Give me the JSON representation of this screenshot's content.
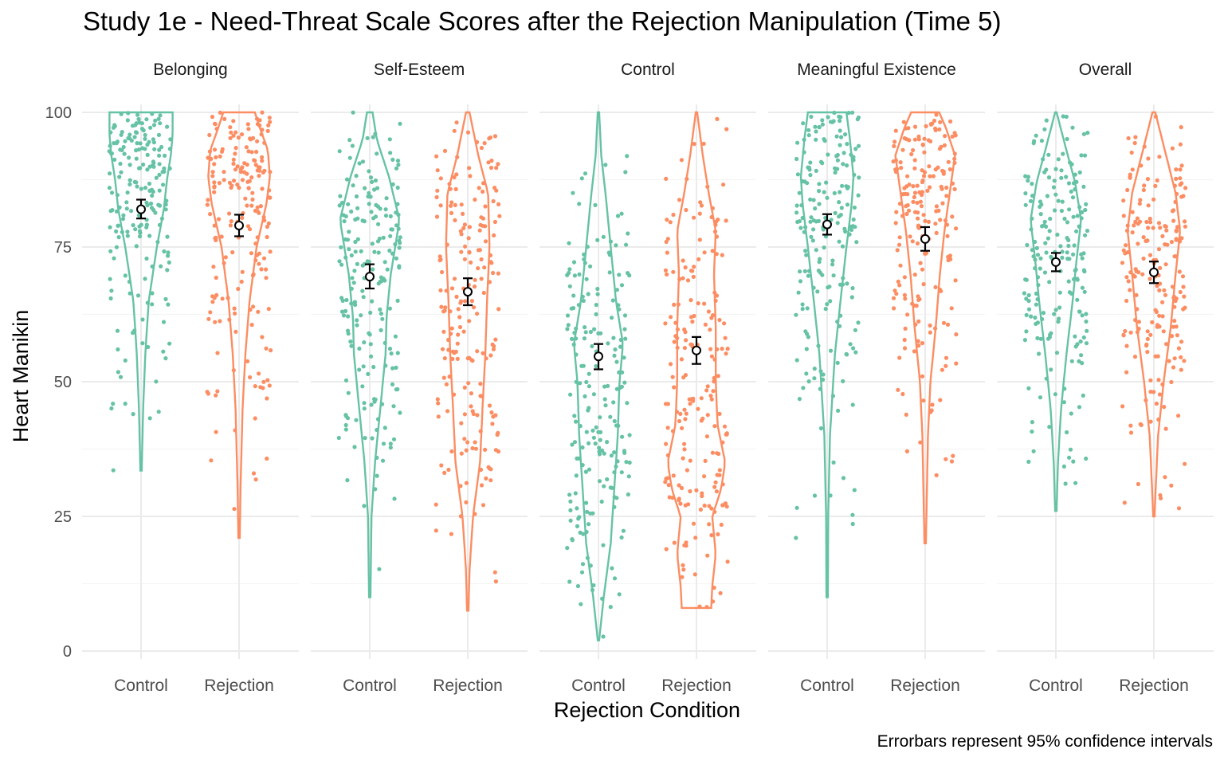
{
  "chart_data": {
    "type": "violin",
    "title": "Study 1e - Need-Threat Scale Scores after the Rejection Manipulation (Time 5)",
    "xlabel": "Rejection Condition",
    "ylabel": "Heart Manikin",
    "caption": "Errorbars represent 95% confidence intervals",
    "ylim": [
      0,
      100
    ],
    "yticks": [
      0,
      25,
      50,
      75,
      100
    ],
    "grid": true,
    "legend": "none",
    "categories": [
      "Control",
      "Rejection"
    ],
    "colors": {
      "Control": "#66c2a5",
      "Rejection": "#fc8d62"
    },
    "facets": [
      {
        "label": "Belonging",
        "groups": [
          {
            "condition": "Control",
            "mean": 82.0,
            "ci": [
              80.3,
              83.8
            ],
            "min": 33.5,
            "max": 100,
            "mode": 93,
            "density": [
              [
                34,
                0.02
              ],
              [
                45,
                0.06
              ],
              [
                55,
                0.12
              ],
              [
                65,
                0.22
              ],
              [
                75,
                0.45
              ],
              [
                82,
                0.65
              ],
              [
                88,
                0.75
              ],
              [
                92,
                0.85
              ],
              [
                96,
                0.9
              ],
              [
                100,
                0.9
              ]
            ]
          },
          {
            "condition": "Rejection",
            "mean": 79.0,
            "ci": [
              77.0,
              81.0
            ],
            "min": 21,
            "max": 100,
            "mode": 88,
            "density": [
              [
                21,
                0.02
              ],
              [
                30,
                0.04
              ],
              [
                45,
                0.1
              ],
              [
                55,
                0.18
              ],
              [
                65,
                0.3
              ],
              [
                75,
                0.5
              ],
              [
                83,
                0.78
              ],
              [
                88,
                0.88
              ],
              [
                93,
                0.82
              ],
              [
                97,
                0.6
              ],
              [
                100,
                0.45
              ]
            ]
          }
        ]
      },
      {
        "label": "Self-Esteem",
        "groups": [
          {
            "condition": "Control",
            "mean": 69.5,
            "ci": [
              67.3,
              71.8
            ],
            "min": 10,
            "max": 100,
            "mode": 80,
            "density": [
              [
                10,
                0.02
              ],
              [
                25,
                0.05
              ],
              [
                35,
                0.15
              ],
              [
                45,
                0.3
              ],
              [
                55,
                0.45
              ],
              [
                62,
                0.48
              ],
              [
                70,
                0.6
              ],
              [
                80,
                0.85
              ],
              [
                88,
                0.55
              ],
              [
                95,
                0.2
              ],
              [
                100,
                0.08
              ]
            ]
          },
          {
            "condition": "Rejection",
            "mean": 66.7,
            "ci": [
              64.2,
              69.2
            ],
            "min": 7.5,
            "max": 100,
            "mode": 82,
            "density": [
              [
                7.5,
                0.02
              ],
              [
                15,
                0.05
              ],
              [
                25,
                0.15
              ],
              [
                35,
                0.35
              ],
              [
                45,
                0.42
              ],
              [
                55,
                0.5
              ],
              [
                65,
                0.55
              ],
              [
                75,
                0.62
              ],
              [
                85,
                0.58
              ],
              [
                92,
                0.3
              ],
              [
                100,
                0.05
              ]
            ]
          }
        ]
      },
      {
        "label": "Control",
        "groups": [
          {
            "condition": "Control",
            "mean": 54.7,
            "ci": [
              52.3,
              57.0
            ],
            "min": 2,
            "max": 100,
            "mode": 55,
            "density": [
              [
                2,
                0.02
              ],
              [
                10,
                0.15
              ],
              [
                20,
                0.35
              ],
              [
                30,
                0.45
              ],
              [
                40,
                0.55
              ],
              [
                50,
                0.6
              ],
              [
                57,
                0.7
              ],
              [
                65,
                0.5
              ],
              [
                75,
                0.35
              ],
              [
                85,
                0.2
              ],
              [
                92,
                0.08
              ],
              [
                100,
                0.02
              ]
            ]
          },
          {
            "condition": "Rejection",
            "mean": 55.8,
            "ci": [
              53.3,
              58.3
            ],
            "min": 8,
            "max": 100,
            "mode": 35,
            "density": [
              [
                8,
                0.42
              ],
              [
                12,
                0.45
              ],
              [
                18,
                0.55
              ],
              [
                25,
                0.45
              ],
              [
                30,
                0.7
              ],
              [
                35,
                0.82
              ],
              [
                42,
                0.6
              ],
              [
                50,
                0.55
              ],
              [
                60,
                0.55
              ],
              [
                70,
                0.5
              ],
              [
                78,
                0.55
              ],
              [
                85,
                0.35
              ],
              [
                92,
                0.18
              ],
              [
                100,
                0.02
              ]
            ]
          }
        ]
      },
      {
        "label": "Meaningful Existence",
        "groups": [
          {
            "condition": "Control",
            "mean": 79.2,
            "ci": [
              77.3,
              81.1
            ],
            "min": 10,
            "max": 100,
            "mode": 87,
            "density": [
              [
                10,
                0.02
              ],
              [
                25,
                0.03
              ],
              [
                40,
                0.08
              ],
              [
                55,
                0.22
              ],
              [
                65,
                0.38
              ],
              [
                75,
                0.55
              ],
              [
                83,
                0.7
              ],
              [
                88,
                0.75
              ],
              [
                95,
                0.65
              ],
              [
                100,
                0.55
              ]
            ]
          },
          {
            "condition": "Rejection",
            "mean": 76.5,
            "ci": [
              74.3,
              78.7
            ],
            "min": 20,
            "max": 100,
            "mode": 92,
            "density": [
              [
                20,
                0.02
              ],
              [
                30,
                0.05
              ],
              [
                40,
                0.08
              ],
              [
                50,
                0.15
              ],
              [
                60,
                0.3
              ],
              [
                70,
                0.42
              ],
              [
                78,
                0.55
              ],
              [
                85,
                0.7
              ],
              [
                92,
                0.85
              ],
              [
                97,
                0.6
              ],
              [
                100,
                0.4
              ]
            ]
          }
        ]
      },
      {
        "label": "Overall",
        "groups": [
          {
            "condition": "Control",
            "mean": 72.2,
            "ci": [
              70.5,
              73.9
            ],
            "min": 26,
            "max": 100,
            "mode": 80,
            "density": [
              [
                26,
                0.02
              ],
              [
                35,
                0.06
              ],
              [
                45,
                0.15
              ],
              [
                55,
                0.3
              ],
              [
                65,
                0.48
              ],
              [
                72,
                0.58
              ],
              [
                80,
                0.72
              ],
              [
                87,
                0.55
              ],
              [
                93,
                0.3
              ],
              [
                100,
                0.02
              ]
            ]
          },
          {
            "condition": "Rejection",
            "mean": 70.3,
            "ci": [
              68.3,
              72.3
            ],
            "min": 25,
            "max": 100,
            "mode": 78,
            "density": [
              [
                25,
                0.02
              ],
              [
                30,
                0.05
              ],
              [
                40,
                0.12
              ],
              [
                50,
                0.28
              ],
              [
                60,
                0.48
              ],
              [
                70,
                0.62
              ],
              [
                78,
                0.75
              ],
              [
                85,
                0.62
              ],
              [
                92,
                0.35
              ],
              [
                100,
                0.04
              ]
            ]
          }
        ]
      }
    ]
  }
}
